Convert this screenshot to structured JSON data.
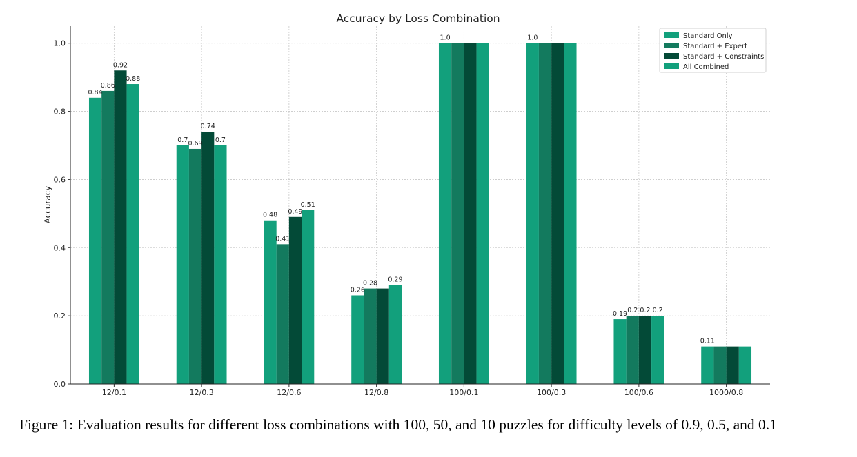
{
  "chart_data": {
    "type": "bar",
    "title": "Accuracy by Loss Combination",
    "xlabel": "",
    "ylabel": "Accuracy",
    "ylim": [
      0,
      1.05
    ],
    "yticks": [
      "0.0",
      "0.2",
      "0.4",
      "0.6",
      "0.8",
      "1.0"
    ],
    "grid": true,
    "legend_position": "top-right",
    "categories": [
      "12/0.1",
      "12/0.3",
      "12/0.6",
      "12/0.8",
      "100/0.1",
      "100/0.3",
      "100/0.6",
      "1000/0.8"
    ],
    "series": [
      {
        "name": "Standard Only",
        "color": "#12a07c",
        "values": [
          0.84,
          0.7,
          0.48,
          0.26,
          1.0,
          1.0,
          0.19,
          0.11
        ],
        "labels": [
          "0.84",
          "0.7",
          "0.48",
          "0.26",
          "1.0",
          "1.0",
          "0.19",
          "0.11"
        ]
      },
      {
        "name": "Standard + Expert",
        "color": "#137a5e",
        "values": [
          0.86,
          0.69,
          0.41,
          0.28,
          1.0,
          1.0,
          0.2,
          0.11
        ],
        "labels": [
          "0.86",
          "0.69",
          "0.41",
          "0.28",
          "",
          "",
          "0.2",
          ""
        ]
      },
      {
        "name": "Standard + Constraints",
        "color": "#034a37",
        "values": [
          0.92,
          0.74,
          0.49,
          0.28,
          1.0,
          1.0,
          0.2,
          0.11
        ],
        "labels": [
          "0.92",
          "0.74",
          "0.49",
          "",
          "",
          "",
          "0.2",
          ""
        ]
      },
      {
        "name": "All Combined",
        "color": "#12a07c",
        "values": [
          0.88,
          0.7,
          0.51,
          0.29,
          1.0,
          1.0,
          0.2,
          0.11
        ],
        "labels": [
          "0.88",
          "0.7",
          "0.51",
          "0.29",
          "",
          "",
          "0.2",
          ""
        ]
      }
    ]
  },
  "caption": "Figure 1: Evaluation results for different loss combinations with 100, 50, and 10 puzzles for difficulty levels of 0.9, 0.5, and 0.1"
}
